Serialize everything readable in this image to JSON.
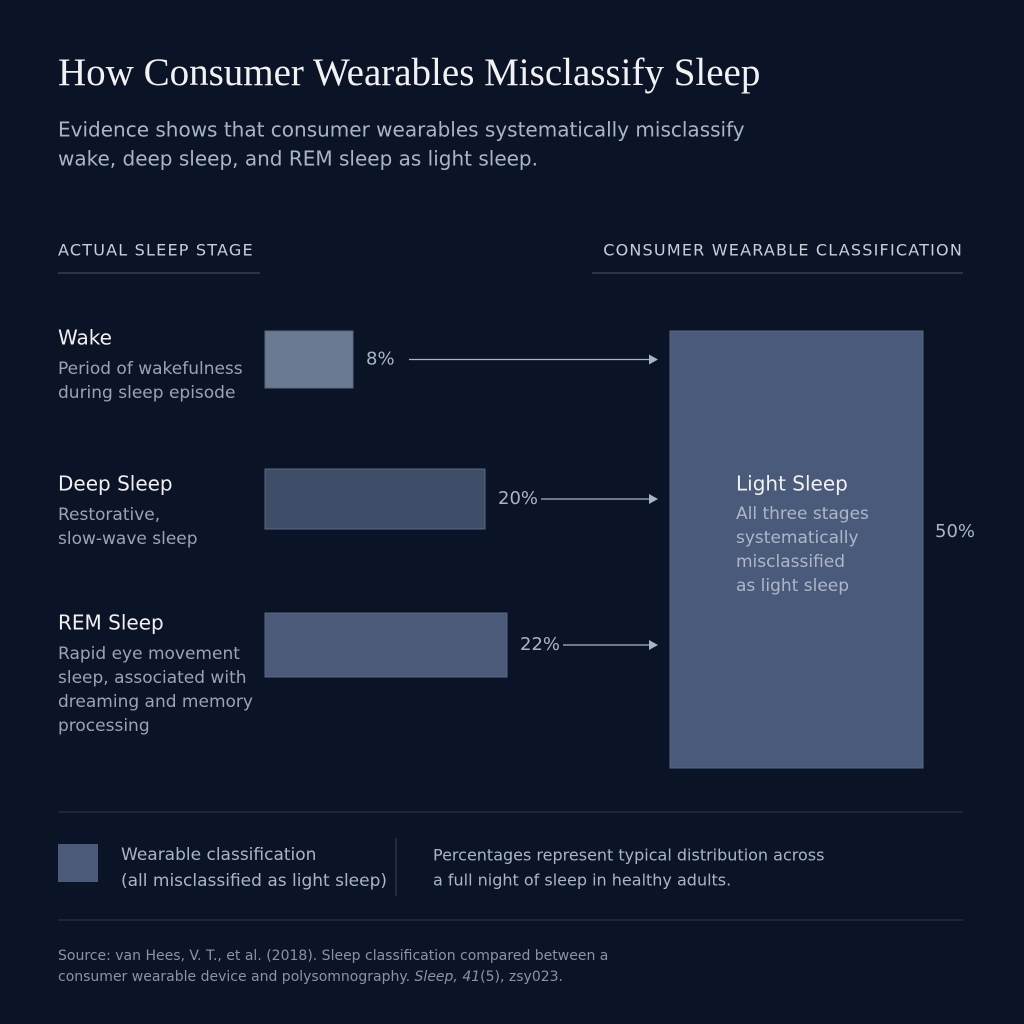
{
  "header": {
    "title": "How Consumer Wearables Misclassify Sleep",
    "subtitle_lines": [
      "Evidence shows that consumer wearables systematically misclassify",
      "wake, deep sleep, and REM sleep as light sleep."
    ]
  },
  "left_heading": "ACTUAL SLEEP STAGE",
  "right_heading": "CONSUMER WEARABLE CLASSIFICATION",
  "stages": [
    {
      "name": "Wake",
      "description_lines": [
        "Period of wakefulness",
        "during sleep episode"
      ],
      "value": 8,
      "value_label": "8%",
      "color": "#6b7a93"
    },
    {
      "name": "Deep Sleep",
      "description_lines": [
        "Restorative,",
        "slow-wave sleep"
      ],
      "value": 20,
      "value_label": "20%",
      "color": "#3f4d68"
    },
    {
      "name": "REM Sleep",
      "description_lines": [
        "Rapid eye movement",
        "sleep, associated with",
        "dreaming and memory",
        "processing"
      ],
      "value": 22,
      "value_label": "22%",
      "color": "#4a5a78"
    }
  ],
  "target": {
    "name": "Light Sleep",
    "description_lines": [
      "All three stages",
      "systematically",
      "misclassified",
      "as light sleep"
    ],
    "value": 50,
    "value_label": "50%",
    "color": "#4a5a7a"
  },
  "legend": {
    "lines": [
      "Wearable classification",
      "(all misclassified as light sleep)"
    ],
    "color": "#4a5a78"
  },
  "note_lines": [
    "Percentages represent typical distribution across",
    "a full night of sleep in healthy adults."
  ],
  "source": {
    "line1": "Source: van Hees, V. T., et al. (2018). Sleep classification compared between a",
    "line2": "consumer wearable device and polysomnography. ",
    "journal": "Sleep, ",
    "volume": "41",
    "rest": "(5), zsy023."
  }
}
